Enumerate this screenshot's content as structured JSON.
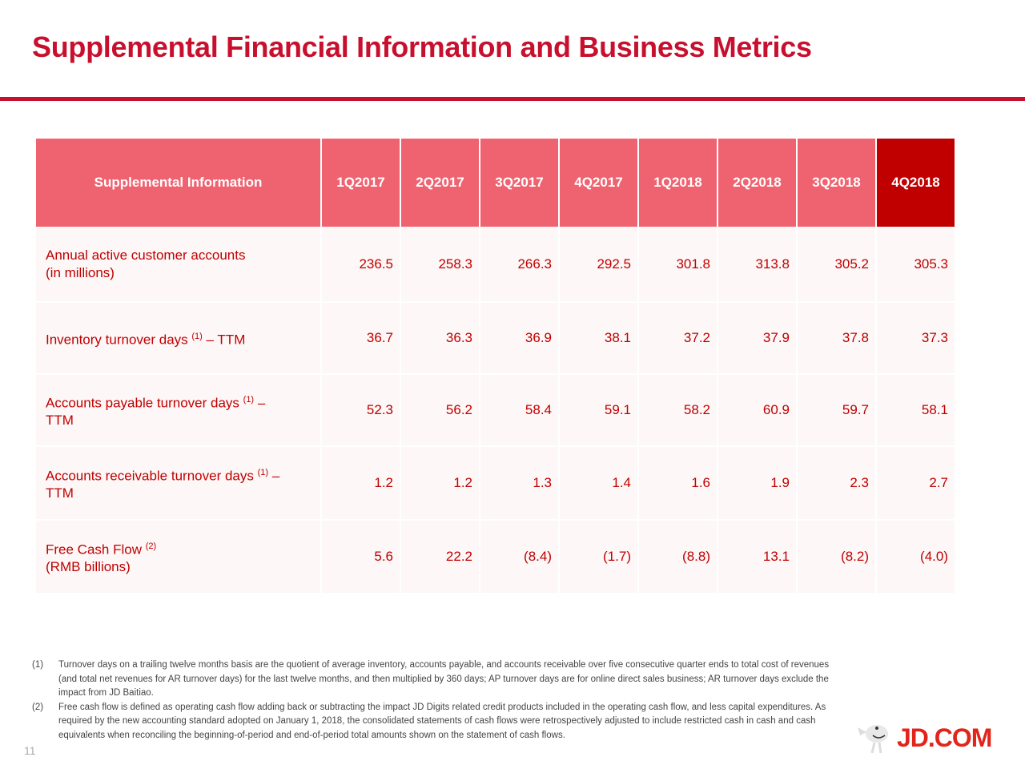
{
  "title": "Supplemental Financial Information and Business Metrics",
  "table": {
    "header": [
      "Supplemental Information",
      "1Q2017",
      "2Q2017",
      "3Q2017",
      "4Q2017",
      "1Q2018",
      "2Q2018",
      "3Q2018",
      "4Q2018"
    ],
    "rows": [
      {
        "label_1": "Annual active customer accounts",
        "sup": "",
        "dash": "",
        "label_2": "(in millions)",
        "values": [
          "236.5",
          "258.3",
          "266.3",
          "292.5",
          "301.8",
          "313.8",
          "305.2",
          "305.3"
        ]
      },
      {
        "label_1": "Inventory turnover days ",
        "sup": "(1)",
        "dash": " – TTM",
        "label_2": "",
        "values": [
          "36.7",
          "36.3",
          "36.9",
          "38.1",
          "37.2",
          "37.9",
          "37.8",
          "37.3"
        ]
      },
      {
        "label_1": "Accounts payable turnover days ",
        "sup": "(1)",
        "dash": " –",
        "label_2": "TTM",
        "values": [
          "52.3",
          "56.2",
          "58.4",
          "59.1",
          "58.2",
          "60.9",
          "59.7",
          "58.1"
        ]
      },
      {
        "label_1": "Accounts receivable turnover days ",
        "sup": "(1)",
        "dash": " –",
        "label_2": "TTM",
        "values": [
          "1.2",
          "1.2",
          "1.3",
          "1.4",
          "1.6",
          "1.9",
          "2.3",
          "2.7"
        ]
      },
      {
        "label_1": "Free Cash Flow ",
        "sup": "(2)",
        "dash": "",
        "label_2": "(RMB billions)",
        "values": [
          "5.6",
          "22.2",
          "(8.4)",
          "(1.7)",
          "(8.8)",
          "13.1",
          "(8.2)",
          "(4.0)"
        ]
      }
    ]
  },
  "footnotes": [
    {
      "num": "(1)",
      "text": "Turnover days on a trailing twelve months basis are the quotient of average inventory, accounts payable, and accounts receivable over five consecutive quarter ends to total cost of revenues (and total net revenues for AR turnover days) for the last twelve months, and then multiplied by 360 days; AP turnover days are for online direct sales business; AR turnover days exclude the impact from JD Baitiao."
    },
    {
      "num": "(2)",
      "text": "Free cash flow is defined as operating cash flow adding back or subtracting the impact JD Digits related credit products included in the operating cash flow, and less capital expenditures. As required by the new accounting standard adopted on January 1, 2018, the consolidated statements of cash flows were retrospectively adjusted to include restricted cash in cash and cash equivalents when reconciling the beginning-of-period and end-of-period total amounts shown on the statement of cash flows."
    }
  ],
  "page_number": "11",
  "logo": "JD.COM",
  "colors": {
    "brand": "#c8102e",
    "header": "#ef6370",
    "highlight": "#c00000"
  }
}
